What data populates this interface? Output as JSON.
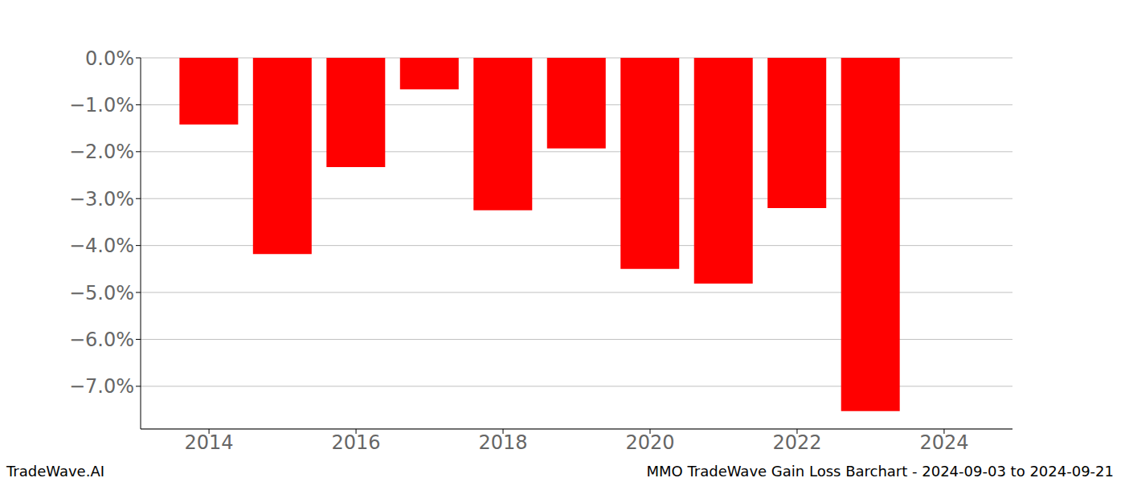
{
  "chart_data": {
    "type": "bar",
    "x": [
      2014,
      2015,
      2016,
      2017,
      2018,
      2019,
      2020,
      2021,
      2022,
      2023
    ],
    "values": [
      -1.42,
      -4.18,
      -2.33,
      -0.67,
      -3.25,
      -1.93,
      -4.5,
      -4.81,
      -3.2,
      -7.53
    ],
    "color": "#ff0000",
    "xlim": [
      2013.07,
      2024.93
    ],
    "xticks": [
      2014,
      2016,
      2018,
      2020,
      2022,
      2024
    ],
    "ylim": [
      -7.91,
      0
    ],
    "yticks": [
      {
        "value": 0,
        "label": "0.0%"
      },
      {
        "value": -1,
        "label": "−1.0%"
      },
      {
        "value": -2,
        "label": "−2.0%"
      },
      {
        "value": -3,
        "label": "−3.0%"
      },
      {
        "value": -4,
        "label": "−4.0%"
      },
      {
        "value": -5,
        "label": "−5.0%"
      },
      {
        "value": -6,
        "label": "−6.0%"
      },
      {
        "value": -7,
        "label": "−7.0%"
      }
    ],
    "grid": true,
    "annotations": [
      "TradeWave.AI",
      "MMO TradeWave Gain Loss Barchart - 2024-09-03 to 2024-09-21"
    ]
  }
}
